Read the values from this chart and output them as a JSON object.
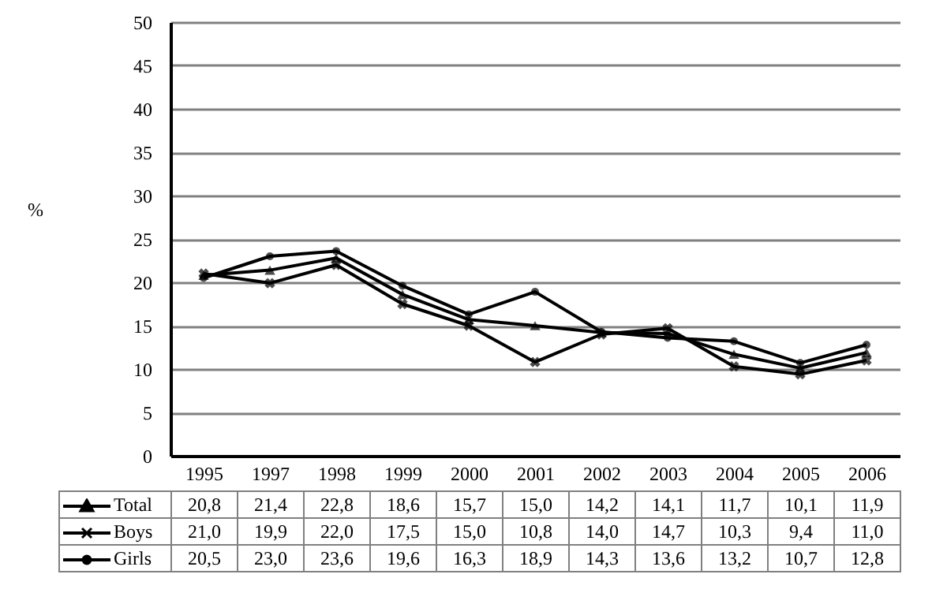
{
  "chart_data": {
    "type": "line",
    "ylabel": "%",
    "categories": [
      "1995",
      "1997",
      "1998",
      "1999",
      "2000",
      "2001",
      "2002",
      "2003",
      "2004",
      "2005",
      "2006"
    ],
    "ylim": [
      0,
      50
    ],
    "yticks": [
      0,
      5,
      10,
      15,
      20,
      25,
      30,
      35,
      40,
      45,
      50
    ],
    "grid": "y",
    "legend": "bottom",
    "series": [
      {
        "name": "Total",
        "color": "#000000",
        "marker": "triangle",
        "values": [
          20.8,
          21.4,
          22.8,
          18.6,
          15.7,
          15.0,
          14.2,
          14.1,
          11.7,
          10.1,
          11.9
        ],
        "value_labels": [
          "20,8",
          "21,4",
          "22,8",
          "18,6",
          "15,7",
          "15,0",
          "14,2",
          "14,1",
          "11,7",
          "10,1",
          "11,9"
        ]
      },
      {
        "name": "Boys",
        "color": "#000000",
        "marker": "cross",
        "values": [
          21.0,
          19.9,
          22.0,
          17.5,
          15.0,
          10.8,
          14.0,
          14.7,
          10.3,
          9.4,
          11.0
        ],
        "value_labels": [
          "21,0",
          "19,9",
          "22,0",
          "17,5",
          "15,0",
          "10,8",
          "14,0",
          "14,7",
          "10,3",
          "9,4",
          "11,0"
        ]
      },
      {
        "name": "Girls",
        "color": "#000000",
        "marker": "circle",
        "values": [
          20.5,
          23.0,
          23.6,
          19.6,
          16.3,
          18.9,
          14.3,
          13.6,
          13.2,
          10.7,
          12.8
        ],
        "value_labels": [
          "20,5",
          "23,0",
          "23,6",
          "19,6",
          "16,3",
          "18,9",
          "14,3",
          "13,6",
          "13,2",
          "10,7",
          "12,8"
        ]
      }
    ]
  }
}
